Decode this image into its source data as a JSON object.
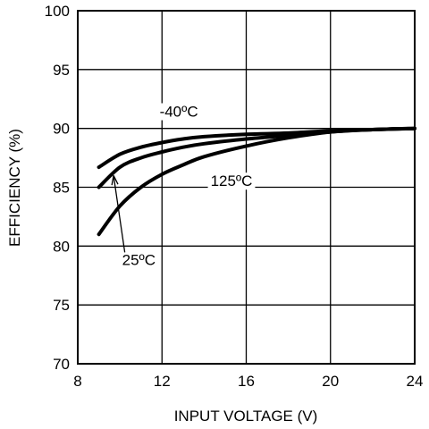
{
  "chart_data": {
    "type": "line",
    "xlabel": "INPUT VOLTAGE (V)",
    "ylabel": "EFFICIENCY (%)",
    "xlim": [
      8,
      24
    ],
    "ylim": [
      70,
      100
    ],
    "xticks": [
      8,
      12,
      16,
      20,
      24
    ],
    "yticks": [
      70,
      75,
      80,
      85,
      90,
      95,
      100
    ],
    "grid": true,
    "series": [
      {
        "name": "-40ºC",
        "x": [
          9,
          10,
          11,
          12,
          13,
          14,
          16,
          18,
          20,
          22,
          24
        ],
        "y": [
          86.7,
          87.8,
          88.4,
          88.8,
          89.1,
          89.3,
          89.5,
          89.6,
          89.8,
          89.9,
          90.0
        ]
      },
      {
        "name": "25ºC",
        "x": [
          9,
          10,
          11,
          12,
          13,
          14,
          16,
          18,
          20,
          22,
          24
        ],
        "y": [
          85.0,
          86.7,
          87.5,
          88.0,
          88.4,
          88.7,
          89.1,
          89.4,
          89.7,
          89.9,
          90.0
        ]
      },
      {
        "name": "125ºC",
        "x": [
          9,
          10,
          11,
          12,
          13,
          14,
          16,
          18,
          20,
          22,
          24
        ],
        "y": [
          81.0,
          83.4,
          85.0,
          86.1,
          86.9,
          87.6,
          88.5,
          89.2,
          89.7,
          89.9,
          90.0
        ]
      }
    ],
    "annotations": [
      {
        "series": "-40ºC",
        "text": "-40ºC",
        "x": 12.8,
        "y": 91.0
      },
      {
        "series": "125ºC",
        "text": "125ºC",
        "x": 15.3,
        "y": 85.1
      },
      {
        "series": "25ºC",
        "text": "25ºC",
        "x": 10.9,
        "y": 78.4,
        "arrow_to": {
          "x": 9.7,
          "y": 86.0
        }
      }
    ]
  }
}
